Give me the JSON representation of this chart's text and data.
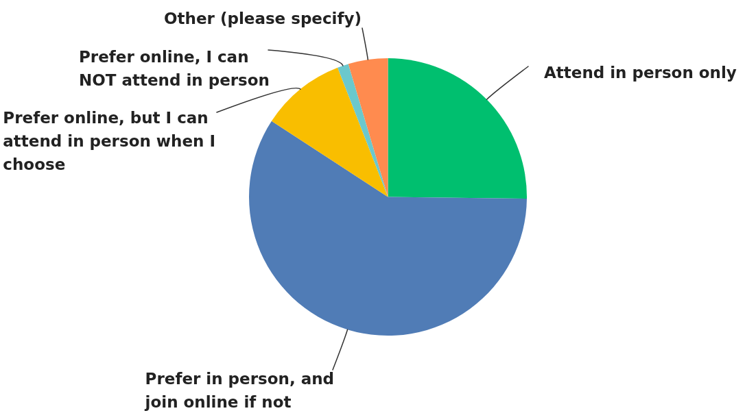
{
  "chart_data": {
    "type": "pie",
    "categories": [
      "Attend in person only",
      "Prefer in person, and join online if not",
      "Prefer online, but I can attend in person when I choose",
      "Prefer online, I can NOT attend in person",
      "Other (please specify)"
    ],
    "values": [
      25.2,
      59.0,
      9.9,
      1.3,
      4.6
    ],
    "colors": [
      "#00bf6f",
      "#507cb6",
      "#f9be00",
      "#6bc8cd",
      "#ff8b4f"
    ]
  }
}
